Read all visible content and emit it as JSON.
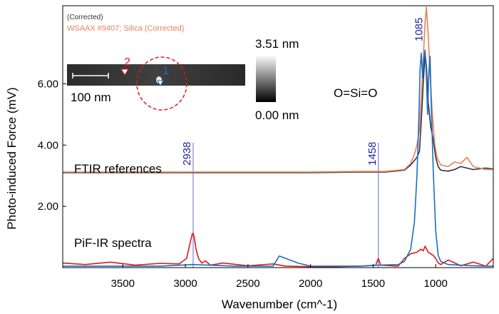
{
  "chart_data": {
    "type": "line",
    "ylabel": "Photo-induced Force (mV)",
    "xlabel": "Wavenumber (cm^-1)",
    "x_reversed": true,
    "xlim": [
      3980,
      540
    ],
    "ylim": [
      0,
      8.55
    ],
    "x_ticks": [
      {
        "value": 3500,
        "label": "3500"
      },
      {
        "value": 3000,
        "label": "3000"
      },
      {
        "value": 2500,
        "label": "2500"
      },
      {
        "value": 2000,
        "label": "2000"
      },
      {
        "value": 1500,
        "label": "1500"
      },
      {
        "value": 1000,
        "label": "1000"
      }
    ],
    "y_ticks": [
      {
        "value": 2,
        "label": "2.00"
      },
      {
        "value": 4,
        "label": "4.00"
      },
      {
        "value": 6,
        "label": "6.00"
      }
    ],
    "grid": false,
    "legend": {
      "placement": "top-left",
      "entries": [
        {
          "label": "(Corrected)",
          "color": "#333333"
        },
        {
          "label": "WSAAX #9407; Silica (Corrected)",
          "color": "#e8825a"
        }
      ]
    },
    "markers": [
      {
        "x": 2938,
        "label": "2938",
        "color": "#1f1fa0"
      },
      {
        "x": 1458,
        "label": "1458",
        "color": "#1f1fa0"
      },
      {
        "x": 1085,
        "label": "1085",
        "color": "#1f1fa0"
      }
    ],
    "annotations": [
      "FTIR references",
      "PiF-IR spectra",
      "O=Si=O"
    ],
    "series": [
      {
        "color": "#333333",
        "x": [
          3980,
          3500,
          3000,
          2500,
          2000,
          1600,
          1400,
          1250,
          1200,
          1170,
          1150,
          1130,
          1115,
          1100,
          1085,
          1075,
          1060,
          1040,
          1020,
          1000,
          980,
          960,
          900,
          850,
          800,
          700,
          600,
          540
        ],
        "y": [
          3.1,
          3.1,
          3.1,
          3.1,
          3.1,
          3.12,
          3.12,
          3.18,
          3.35,
          3.5,
          3.6,
          3.8,
          4.8,
          6.0,
          7.0,
          6.6,
          5.4,
          4.6,
          4.2,
          3.6,
          3.3,
          3.18,
          3.15,
          3.2,
          3.3,
          3.2,
          3.25,
          3.22
        ]
      },
      {
        "color": "#e8825a",
        "x": [
          3980,
          3500,
          3000,
          2500,
          2000,
          1600,
          1400,
          1250,
          1200,
          1170,
          1150,
          1130,
          1115,
          1100,
          1085,
          1075,
          1060,
          1045,
          1030,
          1010,
          990,
          960,
          900,
          850,
          800,
          750,
          700,
          600,
          540
        ],
        "y": [
          3.12,
          3.12,
          3.12,
          3.12,
          3.12,
          3.14,
          3.14,
          3.2,
          3.4,
          3.7,
          4.0,
          4.5,
          5.6,
          6.8,
          8.0,
          8.5,
          7.6,
          6.3,
          5.2,
          4.1,
          3.6,
          3.35,
          3.3,
          3.45,
          3.4,
          3.6,
          3.3,
          3.2,
          3.2
        ]
      },
      {
        "color": "#e01818",
        "x": [
          3980,
          3800,
          3600,
          3400,
          3200,
          3050,
          2990,
          2960,
          2945,
          2938,
          2930,
          2915,
          2895,
          2870,
          2840,
          2800,
          2700,
          2500,
          2300,
          2200,
          2000,
          1800,
          1600,
          1480,
          1458,
          1440,
          1300,
          1250,
          1200,
          1150,
          1120,
          1100,
          1085,
          1060,
          1040,
          1020,
          1000,
          980,
          960,
          900,
          800,
          700,
          600,
          540
        ],
        "y": [
          0.15,
          0.1,
          0.18,
          0.08,
          0.14,
          0.12,
          0.3,
          0.85,
          1.1,
          1.12,
          1.0,
          0.6,
          0.3,
          0.15,
          0.22,
          0.08,
          0.15,
          0.06,
          0.12,
          0.05,
          0.03,
          0.03,
          0.05,
          0.08,
          0.3,
          0.08,
          0.05,
          0.3,
          0.45,
          0.5,
          0.6,
          0.55,
          0.7,
          0.5,
          0.45,
          0.4,
          0.3,
          0.15,
          0.1,
          0.25,
          0.06,
          0.18,
          0.05,
          0.3
        ]
      },
      {
        "color": "#1a6fc0",
        "x": [
          3980,
          3600,
          3200,
          2938,
          2600,
          2300,
          2250,
          2100,
          2000,
          1800,
          1600,
          1458,
          1300,
          1250,
          1200,
          1170,
          1150,
          1135,
          1125,
          1115,
          1105,
          1095,
          1085,
          1075,
          1065,
          1055,
          1045,
          1035,
          1020,
          1000,
          980,
          960,
          900,
          800,
          700,
          600,
          540
        ],
        "y": [
          0.05,
          0.05,
          0.05,
          0.1,
          0.05,
          0.05,
          0.38,
          0.15,
          0.05,
          0.05,
          0.05,
          0.08,
          0.1,
          0.2,
          0.6,
          1.5,
          3.0,
          4.8,
          6.5,
          7.0,
          6.2,
          6.8,
          7.1,
          6.3,
          5.0,
          6.4,
          6.9,
          5.2,
          3.2,
          1.2,
          0.4,
          0.2,
          0.1,
          0.08,
          0.06,
          0.05,
          0.05
        ]
      }
    ]
  },
  "inset": {
    "point_1": "1",
    "point_2": "2",
    "scale_label": "100 nm",
    "colorbar_max": "3.51 nm",
    "colorbar_min": "0.00 nm"
  }
}
